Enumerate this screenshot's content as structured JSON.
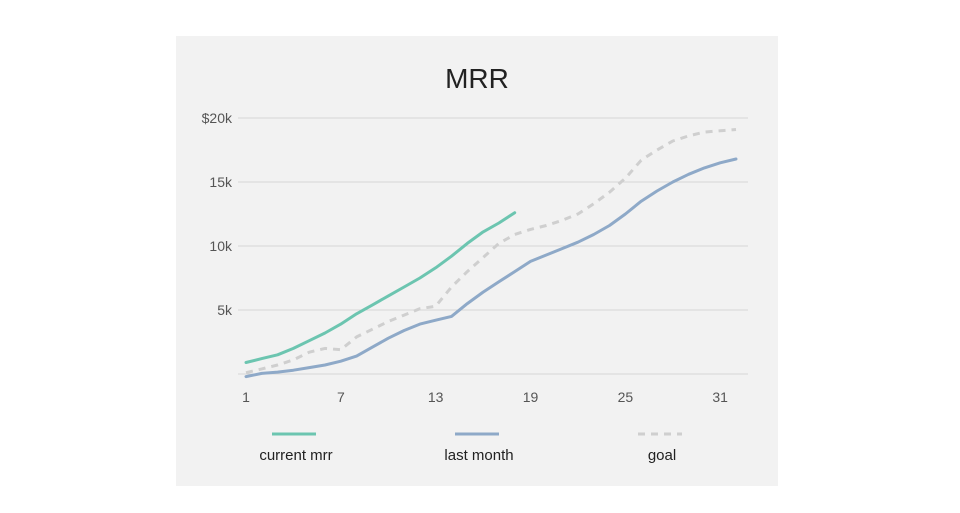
{
  "chart_data": {
    "type": "line",
    "title": "MRR",
    "xlabel": "",
    "ylabel": "",
    "xlim": [
      1,
      32
    ],
    "ylim": [
      0,
      20000
    ],
    "grid": true,
    "legend_position": "bottom",
    "x_ticks": [
      "1",
      "7",
      "13",
      "19",
      "25",
      "31"
    ],
    "x_tick_values": [
      1,
      7,
      13,
      19,
      25,
      31
    ],
    "y_ticks": [
      "$20k",
      "15k",
      "10k",
      "5k"
    ],
    "y_tick_values": [
      20000,
      15000,
      10000,
      5000
    ],
    "series": [
      {
        "name": "current mrr",
        "color": "#6cc5b0",
        "style": "solid",
        "x": [
          1,
          2,
          3,
          4,
          5,
          6,
          7,
          8,
          9,
          10,
          11,
          12,
          13,
          14,
          15,
          16,
          17,
          18
        ],
        "y": [
          900,
          1200,
          1500,
          2000,
          2600,
          3200,
          3900,
          4700,
          5400,
          6100,
          6800,
          7500,
          8300,
          9200,
          10200,
          11100,
          11800,
          12600
        ]
      },
      {
        "name": "last month",
        "color": "#8ea9c8",
        "style": "solid",
        "x": [
          1,
          2,
          3,
          4,
          5,
          6,
          7,
          8,
          9,
          10,
          11,
          12,
          13,
          14,
          15,
          16,
          17,
          18,
          19,
          20,
          21,
          22,
          23,
          24,
          25,
          26,
          27,
          28,
          29,
          30,
          31,
          32
        ],
        "y": [
          -200,
          50,
          150,
          300,
          500,
          700,
          1000,
          1400,
          2100,
          2800,
          3400,
          3900,
          4200,
          4500,
          5500,
          6400,
          7200,
          8000,
          8800,
          9300,
          9800,
          10300,
          10900,
          11600,
          12500,
          13500,
          14300,
          15000,
          15600,
          16100,
          16500,
          16800
        ]
      },
      {
        "name": "goal",
        "color": "#cfcfcf",
        "style": "dashed",
        "x": [
          1,
          2,
          3,
          4,
          5,
          6,
          7,
          8,
          9,
          10,
          11,
          12,
          13,
          14,
          15,
          16,
          17,
          18,
          19,
          20,
          21,
          22,
          23,
          24,
          25,
          26,
          27,
          28,
          29,
          30,
          31,
          32
        ],
        "y": [
          100,
          400,
          700,
          1100,
          1700,
          2000,
          1900,
          2900,
          3500,
          4100,
          4600,
          5100,
          5300,
          6800,
          8000,
          9100,
          10200,
          10900,
          11300,
          11600,
          12000,
          12500,
          13300,
          14200,
          15300,
          16700,
          17500,
          18200,
          18600,
          18900,
          19000,
          19100
        ]
      }
    ]
  }
}
